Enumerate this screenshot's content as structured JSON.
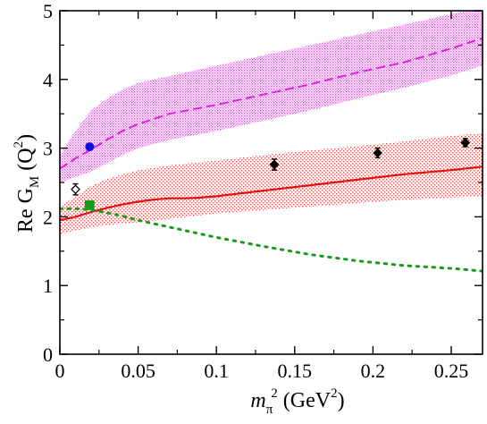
{
  "chart_data": {
    "type": "line",
    "xlim": [
      0,
      0.27
    ],
    "ylim": [
      0,
      5
    ],
    "x_ticks": [
      0,
      0.05,
      0.1,
      0.15,
      0.2,
      0.25
    ],
    "x_tick_labels": [
      "0",
      "0.05",
      "0.1",
      "0.15",
      "0.2",
      "0.25"
    ],
    "y_ticks": [
      0,
      1,
      2,
      3,
      4,
      5
    ],
    "y_tick_labels": [
      "0",
      "1",
      "2",
      "3",
      "4",
      "5"
    ],
    "xlabel": {
      "main": "m",
      "sub": "π",
      "sup": "2",
      "unit": "(GeV",
      "unit_sup": "2",
      "close": ")"
    },
    "ylabel": {
      "main": "Re G",
      "sub": "M",
      "arg": "(Q",
      "arg_sup": "2",
      "close": ")"
    },
    "grid": false,
    "colors": {
      "magenta": "#e020e0",
      "red": "#e01010",
      "green": "#1a9a1a",
      "blue": "#1010e0",
      "black": "#000000"
    },
    "series": [
      {
        "style": "dashed",
        "color": "magenta",
        "x": [
          0,
          0.01,
          0.02,
          0.03,
          0.04,
          0.05,
          0.07,
          0.1,
          0.13,
          0.16,
          0.19,
          0.22,
          0.25,
          0.27
        ],
        "y": [
          2.7,
          2.85,
          2.98,
          3.12,
          3.25,
          3.35,
          3.5,
          3.63,
          3.78,
          3.93,
          4.1,
          4.25,
          4.45,
          4.6
        ]
      },
      {
        "style": "solid",
        "color": "red",
        "x": [
          0,
          0.01,
          0.02,
          0.03,
          0.04,
          0.05,
          0.06,
          0.07,
          0.08,
          0.09,
          0.1,
          0.13,
          0.16,
          0.19,
          0.22,
          0.25,
          0.27
        ],
        "y": [
          1.95,
          2.0,
          2.07,
          2.13,
          2.18,
          2.22,
          2.25,
          2.27,
          2.27,
          2.28,
          2.3,
          2.38,
          2.46,
          2.54,
          2.62,
          2.68,
          2.73
        ]
      },
      {
        "style": "dotted",
        "color": "green",
        "x": [
          0,
          0.01,
          0.02,
          0.03,
          0.04,
          0.05,
          0.07,
          0.1,
          0.13,
          0.16,
          0.19,
          0.22,
          0.25,
          0.27
        ],
        "y": [
          2.12,
          2.12,
          2.1,
          2.06,
          2.01,
          1.95,
          1.85,
          1.7,
          1.57,
          1.45,
          1.36,
          1.29,
          1.25,
          1.21
        ]
      }
    ],
    "bands": [
      {
        "color": "magenta",
        "x": [
          0,
          0.01,
          0.02,
          0.03,
          0.04,
          0.05,
          0.07,
          0.1,
          0.13,
          0.16,
          0.19,
          0.22,
          0.25,
          0.27
        ],
        "lower": [
          2.5,
          2.58,
          2.66,
          2.78,
          2.9,
          3.0,
          3.12,
          3.25,
          3.4,
          3.55,
          3.72,
          3.88,
          4.06,
          4.2
        ],
        "upper": [
          2.9,
          3.25,
          3.55,
          3.72,
          3.85,
          3.95,
          4.05,
          4.2,
          4.35,
          4.5,
          4.65,
          4.8,
          4.95,
          5.05
        ]
      },
      {
        "color": "red",
        "x": [
          0,
          0.01,
          0.02,
          0.03,
          0.04,
          0.05,
          0.07,
          0.1,
          0.13,
          0.16,
          0.19,
          0.22,
          0.25,
          0.27
        ],
        "lower": [
          1.75,
          1.8,
          1.85,
          1.88,
          1.9,
          1.92,
          1.97,
          2.05,
          2.1,
          2.15,
          2.2,
          2.25,
          2.28,
          2.3
        ],
        "upper": [
          2.15,
          2.3,
          2.45,
          2.55,
          2.62,
          2.68,
          2.75,
          2.82,
          2.9,
          2.97,
          3.03,
          3.1,
          3.18,
          3.22
        ]
      }
    ],
    "points": [
      {
        "marker": "circle",
        "color": "blue",
        "x": 0.019,
        "y": 3.02
      },
      {
        "marker": "square",
        "color": "green",
        "x": 0.019,
        "y": 2.17
      },
      {
        "marker": "diamond-open",
        "color": "black",
        "x": 0.01,
        "y": 2.4,
        "err": 0.08
      },
      {
        "marker": "diamond",
        "color": "black",
        "x": 0.137,
        "y": 2.76,
        "err": 0.08
      },
      {
        "marker": "diamond",
        "color": "black",
        "x": 0.203,
        "y": 2.93,
        "err": 0.07
      },
      {
        "marker": "diamond",
        "color": "black",
        "x": 0.259,
        "y": 3.08,
        "err": 0.06
      }
    ]
  }
}
